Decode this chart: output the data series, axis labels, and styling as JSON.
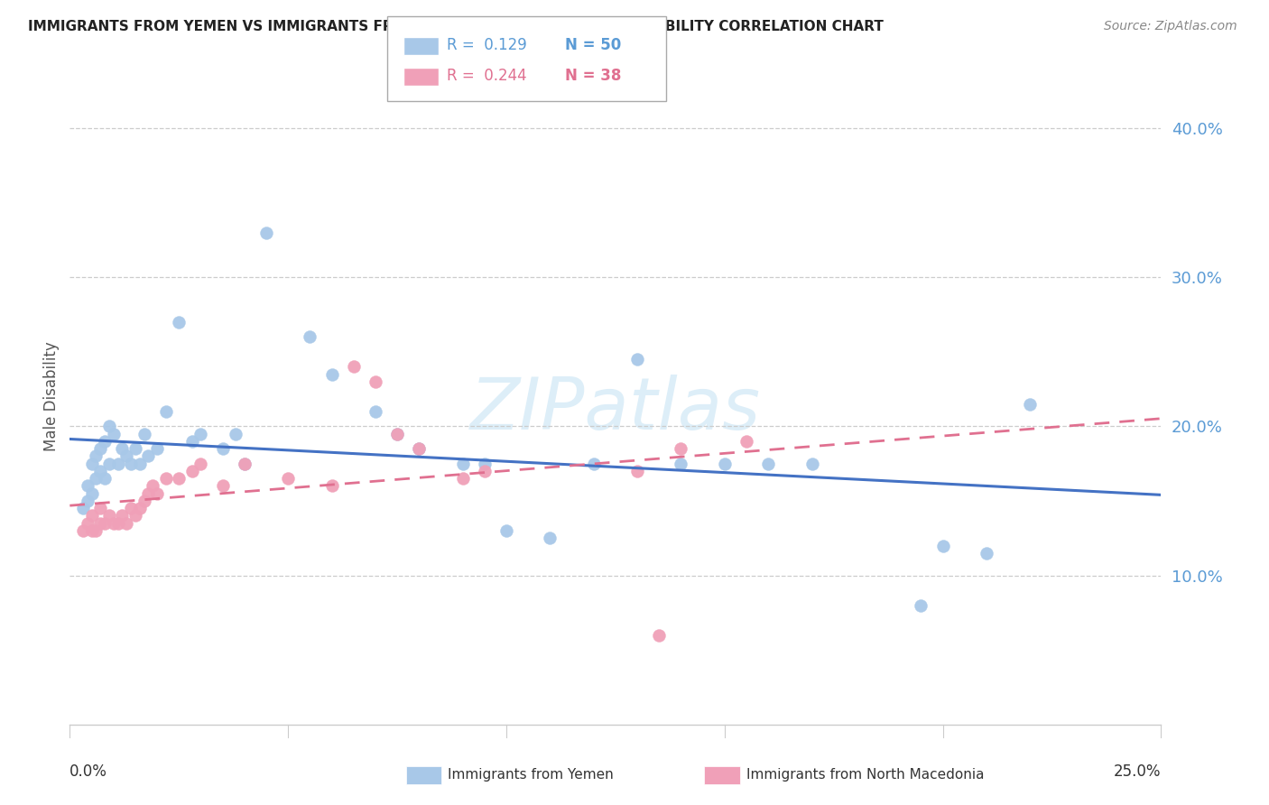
{
  "title": "IMMIGRANTS FROM YEMEN VS IMMIGRANTS FROM NORTH MACEDONIA MALE DISABILITY CORRELATION CHART",
  "source": "Source: ZipAtlas.com",
  "ylabel": "Male Disability",
  "xlim": [
    0,
    0.25
  ],
  "ylim": [
    0.0,
    0.44
  ],
  "ytick_values": [
    0.1,
    0.2,
    0.3,
    0.4
  ],
  "ytick_labels": [
    "10.0%",
    "20.0%",
    "30.0%",
    "40.0%"
  ],
  "color_yemen": "#a8c8e8",
  "color_macedonia": "#f0a0b8",
  "color_trend_yemen": "#4472c4",
  "color_trend_macedonia": "#e07090",
  "watermark_color": "#ddeeff",
  "yemen_x": [
    0.003,
    0.004,
    0.004,
    0.005,
    0.005,
    0.006,
    0.006,
    0.007,
    0.007,
    0.008,
    0.008,
    0.009,
    0.009,
    0.01,
    0.011,
    0.012,
    0.013,
    0.014,
    0.015,
    0.016,
    0.017,
    0.018,
    0.02,
    0.022,
    0.025,
    0.028,
    0.03,
    0.035,
    0.038,
    0.04,
    0.045,
    0.055,
    0.06,
    0.07,
    0.075,
    0.08,
    0.09,
    0.095,
    0.1,
    0.11,
    0.12,
    0.13,
    0.14,
    0.15,
    0.16,
    0.17,
    0.2,
    0.21,
    0.22,
    0.195
  ],
  "yemen_y": [
    0.145,
    0.15,
    0.16,
    0.155,
    0.175,
    0.165,
    0.18,
    0.17,
    0.185,
    0.165,
    0.19,
    0.175,
    0.2,
    0.195,
    0.175,
    0.185,
    0.18,
    0.175,
    0.185,
    0.175,
    0.195,
    0.18,
    0.185,
    0.21,
    0.27,
    0.19,
    0.195,
    0.185,
    0.195,
    0.175,
    0.33,
    0.26,
    0.235,
    0.21,
    0.195,
    0.185,
    0.175,
    0.175,
    0.13,
    0.125,
    0.175,
    0.245,
    0.175,
    0.175,
    0.175,
    0.175,
    0.12,
    0.115,
    0.215,
    0.08
  ],
  "macedonia_x": [
    0.003,
    0.004,
    0.005,
    0.005,
    0.006,
    0.007,
    0.007,
    0.008,
    0.009,
    0.01,
    0.011,
    0.012,
    0.013,
    0.014,
    0.015,
    0.016,
    0.017,
    0.018,
    0.019,
    0.02,
    0.022,
    0.025,
    0.028,
    0.03,
    0.035,
    0.04,
    0.05,
    0.06,
    0.065,
    0.07,
    0.075,
    0.08,
    0.09,
    0.095,
    0.13,
    0.14,
    0.155,
    0.135
  ],
  "macedonia_y": [
    0.13,
    0.135,
    0.13,
    0.14,
    0.13,
    0.135,
    0.145,
    0.135,
    0.14,
    0.135,
    0.135,
    0.14,
    0.135,
    0.145,
    0.14,
    0.145,
    0.15,
    0.155,
    0.16,
    0.155,
    0.165,
    0.165,
    0.17,
    0.175,
    0.16,
    0.175,
    0.165,
    0.16,
    0.24,
    0.23,
    0.195,
    0.185,
    0.165,
    0.17,
    0.17,
    0.185,
    0.19,
    0.06
  ]
}
